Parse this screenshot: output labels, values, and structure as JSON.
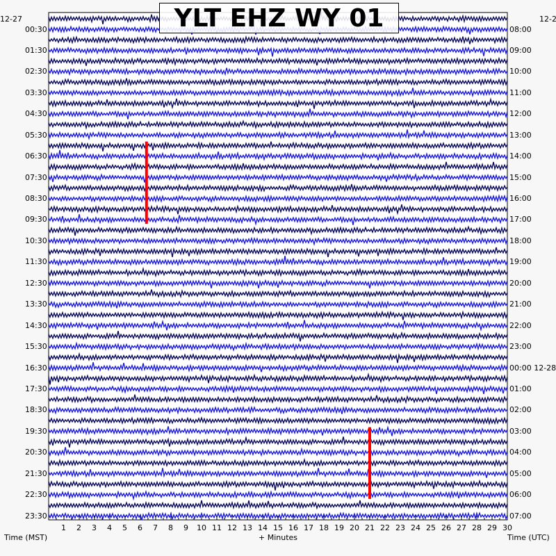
{
  "chart_data": {
    "type": "helicorder",
    "title": "YLT EHZ WY 01",
    "xlabel": "+ Minutes",
    "left_axis_label": "Time (MST)",
    "right_axis_label": "Time (UTC)",
    "left_date_label": "12-27",
    "right_date_label": "12-28",
    "right_date_label_top": "12-2",
    "xlim": [
      0,
      30
    ],
    "x_ticks": [
      "1",
      "2",
      "3",
      "4",
      "5",
      "6",
      "7",
      "8",
      "9",
      "10",
      "11",
      "12",
      "13",
      "14",
      "15",
      "16",
      "17",
      "18",
      "19",
      "20",
      "21",
      "22",
      "23",
      "24",
      "25",
      "26",
      "27",
      "28",
      "29",
      "30"
    ],
    "left_time_labels": [
      "00:30",
      "01:30",
      "02:30",
      "03:30",
      "04:30",
      "05:30",
      "06:30",
      "07:30",
      "08:30",
      "09:30",
      "10:30",
      "11:30",
      "12:30",
      "13:30",
      "14:30",
      "15:30",
      "16:30",
      "17:30",
      "18:30",
      "19:30",
      "20:30",
      "21:30",
      "22:30",
      "23:30"
    ],
    "right_time_labels": [
      "08:00",
      "09:00",
      "10:00",
      "11:00",
      "12:00",
      "13:00",
      "14:00",
      "15:00",
      "16:00",
      "17:00",
      "18:00",
      "19:00",
      "20:00",
      "21:00",
      "22:00",
      "23:00",
      "00:00 12-28",
      "01:00",
      "02:00",
      "03:00",
      "04:00",
      "05:00",
      "06:00",
      "07:00"
    ],
    "trace_rows": 48,
    "trace_colors": [
      "#0a0a5e",
      "#1a1ae6"
    ],
    "event_marker_color": "#ff0000",
    "events": [
      {
        "minute": 6.4,
        "start_row": 12,
        "end_row": 19
      },
      {
        "minute": 21.0,
        "start_row": 39,
        "end_row": 45
      }
    ],
    "grid": false
  }
}
